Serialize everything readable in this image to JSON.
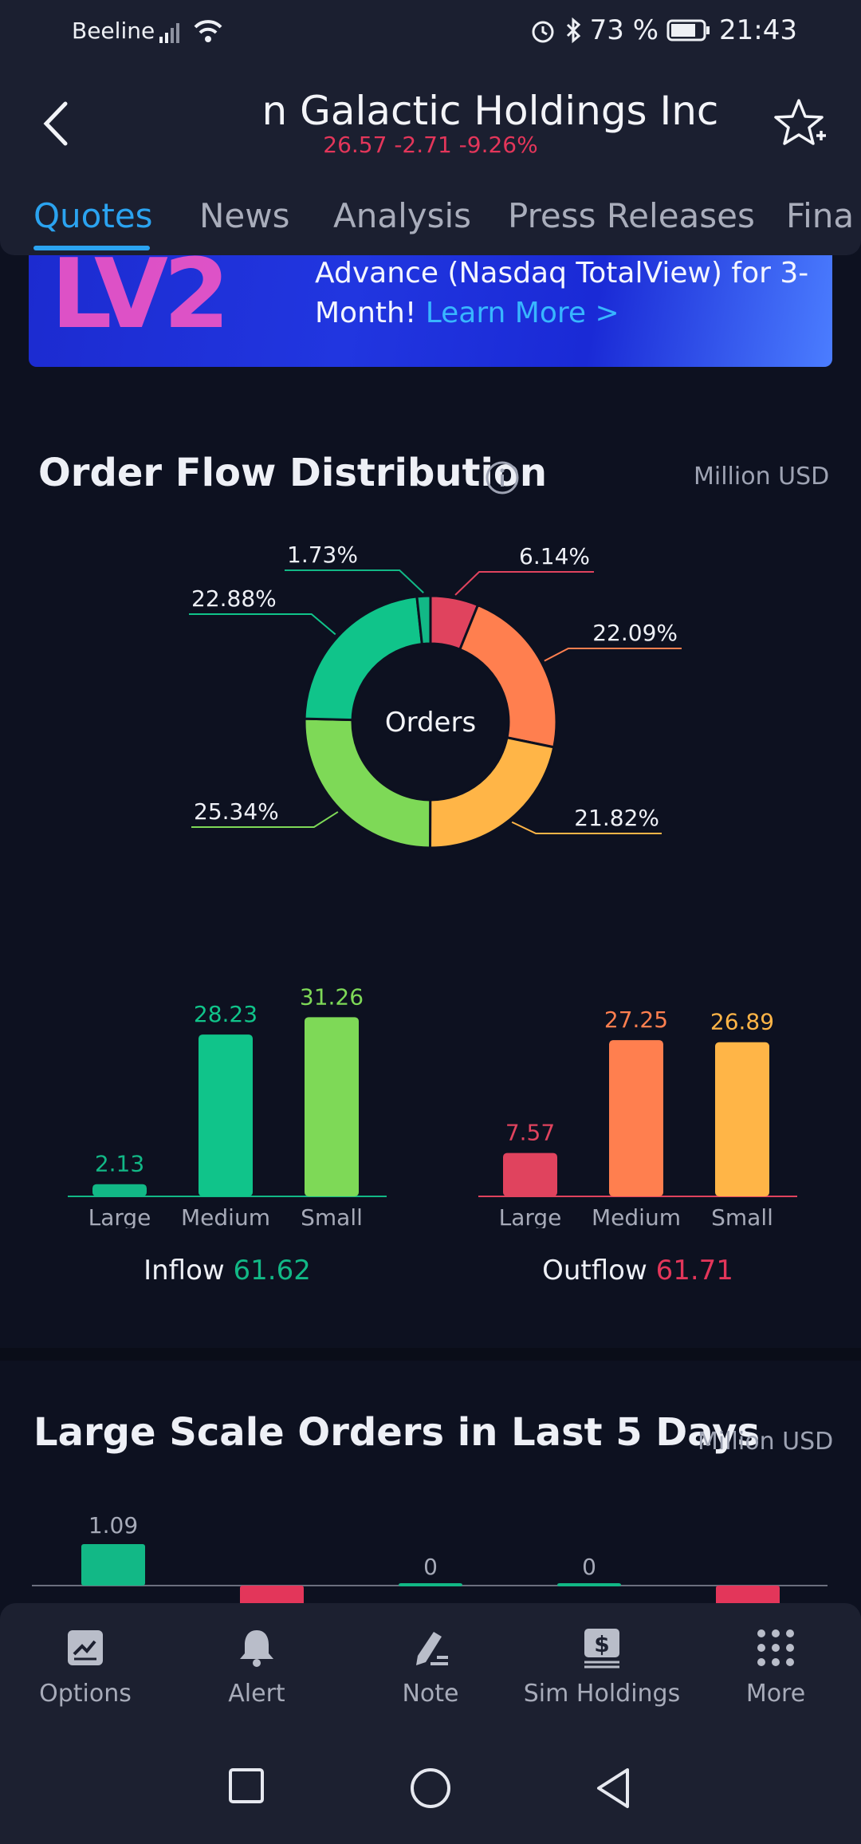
{
  "status_bar": {
    "carrier": "Beeline",
    "battery": "73 %",
    "time": "21:43"
  },
  "header": {
    "title": "Virgin Galactic Holdings Inc",
    "title_visible": "n Galactic Holdings Inc",
    "quote": "26.57 -2.71 -9.26%"
  },
  "tabs": [
    {
      "label": "Quotes",
      "active": true
    },
    {
      "label": "News"
    },
    {
      "label": "Analysis"
    },
    {
      "label": "Press Releases"
    },
    {
      "label": "Fina"
    }
  ],
  "banner": {
    "text": "Advance (Nasdaq TotalView) for 3-Month!",
    "link": "Learn More >"
  },
  "order_flow": {
    "title": "Order Flow Distribution",
    "unit": "Million USD",
    "donut_center": "Orders"
  },
  "colors": {
    "inflow_large": "#12b886",
    "inflow_medium": "#10c48a",
    "inflow_small": "#7ed957",
    "outflow_large": "#e0435e",
    "outflow_medium": "#ff7f4f",
    "outflow_small": "#ffb547",
    "down": "#e3365a",
    "up": "#12b886"
  },
  "chart_data": [
    {
      "type": "pie",
      "labels": [
        "6.14%",
        "22.09%",
        "21.82%",
        "25.34%",
        "22.88%",
        "1.73%"
      ],
      "values": [
        6.14,
        22.09,
        21.82,
        25.34,
        22.88,
        1.73
      ],
      "colors": [
        "#e0435e",
        "#ff7f4f",
        "#ffb547",
        "#7ed957",
        "#10c48a",
        "#12b886"
      ],
      "title": ""
    },
    {
      "type": "bar",
      "categories": [
        "Large",
        "Medium",
        "Small"
      ],
      "values": [
        2.13,
        28.23,
        31.26
      ],
      "colors": [
        "#12b886",
        "#10c48a",
        "#7ed957"
      ],
      "caption_label": "Inflow",
      "caption_value": "61.62"
    },
    {
      "type": "bar",
      "categories": [
        "Large",
        "Medium",
        "Small"
      ],
      "values": [
        7.57,
        27.25,
        26.89
      ],
      "colors": [
        "#e0435e",
        "#ff7f4f",
        "#ffb547"
      ],
      "caption_label": "Outflow",
      "caption_value": "61.71"
    },
    {
      "type": "bar",
      "title": "Large Scale Orders in Last 5 Days",
      "unit": "Million USD",
      "values": [
        1.09,
        -0.6,
        0,
        0,
        -0.6
      ],
      "labels": [
        "1.09",
        "",
        "0",
        "0",
        ""
      ]
    }
  ],
  "large_orders": {
    "title": "Large Scale Orders in Last 5 Days",
    "unit": "Million USD"
  },
  "bottom_nav": [
    {
      "label": "Options",
      "icon": "options-icon"
    },
    {
      "label": "Alert",
      "icon": "bell-icon"
    },
    {
      "label": "Note",
      "icon": "pen-icon"
    },
    {
      "label": "Sim Holdings",
      "icon": "dollar-icon"
    },
    {
      "label": "More",
      "icon": "grid-icon"
    }
  ]
}
